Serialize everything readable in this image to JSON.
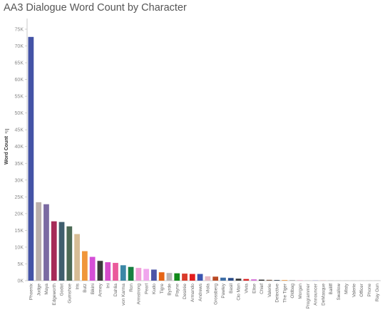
{
  "title": "AA3 Dialogue Word Count by Character",
  "icons": {
    "sort": "sort-descending-icon"
  },
  "colors": {
    "axis": "#bbbbbb",
    "tick_text": "#888888",
    "gridline": "#f0f0f0"
  },
  "chart_data": {
    "type": "bar",
    "title": "AA3 Dialogue Word Count by Character",
    "xlabel": "",
    "ylabel": "Word Count",
    "ylim": [
      0,
      75000
    ],
    "yticks": [
      0,
      5000,
      10000,
      15000,
      20000,
      25000,
      30000,
      35000,
      40000,
      45000,
      50000,
      55000,
      60000,
      65000,
      70000,
      75000
    ],
    "ytick_labels": [
      "0K",
      "5K",
      "10K",
      "15K",
      "20K",
      "25K",
      "30K",
      "35K",
      "40K",
      "45K",
      "50K",
      "55K",
      "60K",
      "65K",
      "70K",
      "75K"
    ],
    "grid": false,
    "categories": [
      "Phoenix",
      "Judge",
      "Maya",
      "Edgeworth",
      "Godot",
      "Gumshoe",
      "Iris",
      "Butz",
      "Bikini",
      "Armey",
      "Ini",
      "Dahlia",
      "von Karma",
      "Ron",
      "Armstrong",
      "Pearl",
      "Kudo",
      "Tigre",
      "Byrde",
      "Payne",
      "Desirée",
      "Armando",
      "Andrews",
      "Viola",
      "Grossberg",
      "Pawley",
      "Basil",
      "Cio Man",
      "Vivia",
      "Elise",
      "Chief",
      "Valerie",
      "Detective",
      "The Tiger",
      "Oldbag",
      "Morgan",
      "Programmer",
      "Announcer",
      "DeMasque",
      "Bailiff",
      "Swallow",
      "Misty",
      "Valerie",
      "Officer",
      "Phone",
      "Ray Gun"
    ],
    "values": [
      72700,
      23400,
      22800,
      17700,
      17500,
      16200,
      13900,
      8800,
      7100,
      5900,
      5500,
      5300,
      4600,
      4100,
      3800,
      3500,
      3300,
      2500,
      2300,
      2200,
      2100,
      2000,
      2000,
      1300,
      1200,
      900,
      800,
      600,
      500,
      400,
      300,
      250,
      200,
      180,
      150,
      130,
      110,
      100,
      80,
      60,
      40,
      30,
      20,
      15,
      10,
      5
    ],
    "bar_colors": [
      "#4453a6",
      "#bab0ac",
      "#7b6aa2",
      "#a62b58",
      "#3f5e6d",
      "#4c6a55",
      "#d7bc95",
      "#f0963a",
      "#d54fd7",
      "#3a3a3a",
      "#d64bcb",
      "#ea5a9b",
      "#3b87a6",
      "#168040",
      "#f09fd8",
      "#f0a6ed",
      "#4d54a8",
      "#e66515",
      "#bab7b8",
      "#128a1a",
      "#d93a2a",
      "#e41d1d",
      "#3c56b0",
      "#e8b9c3",
      "#b94a24",
      "#3d6ea6",
      "#2c4d88",
      "#3a3a3a",
      "#d92424",
      "#d46cd8",
      "#2a2a2a",
      "#7a5a48",
      "#3b4a5a",
      "#f0963a",
      "#999999",
      "#e0a0c0",
      "#c0c0c0",
      "#a0a0d0",
      "#d0a0a0",
      "#b0b0b0",
      "#c0c0c0",
      "#c0c0c0",
      "#c0c0c0",
      "#c0c0c0",
      "#c0c0c0",
      "#c0c0c0"
    ]
  }
}
